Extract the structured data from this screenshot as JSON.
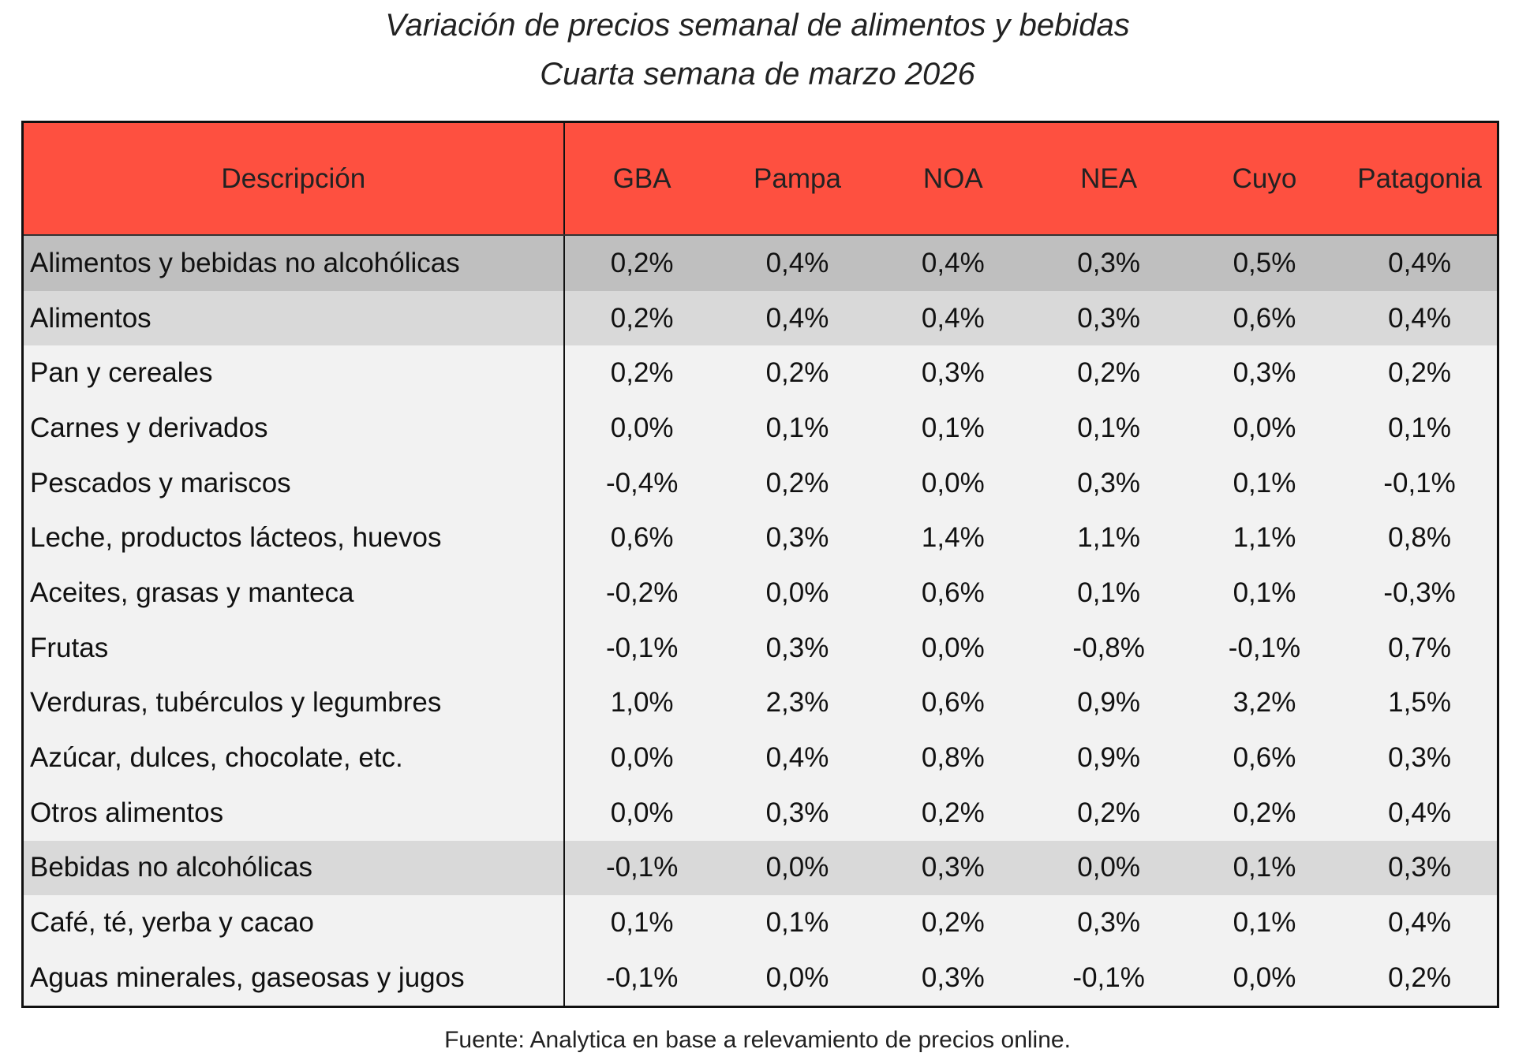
{
  "title": "Variación de precios semanal de alimentos y bebidas",
  "subtitle": "Cuarta semana de marzo 2026",
  "colors": {
    "header": "#fe5040",
    "row_total": "#bfbfbf",
    "row_group": "#d9d9d9",
    "row_item": "#f2f2f2"
  },
  "columns": [
    "Descripción",
    "GBA",
    "Pampa",
    "NOA",
    "NEA",
    "Cuyo",
    "Patagonia"
  ],
  "rows": [
    {
      "level": 0,
      "cells": [
        "Alimentos y bebidas no alcohólicas",
        "0,2%",
        "0,4%",
        "0,4%",
        "0,3%",
        "0,5%",
        "0,4%"
      ]
    },
    {
      "level": 1,
      "cells": [
        "Alimentos",
        "0,2%",
        "0,4%",
        "0,4%",
        "0,3%",
        "0,6%",
        "0,4%"
      ]
    },
    {
      "level": 2,
      "cells": [
        "Pan y cereales",
        "0,2%",
        "0,2%",
        "0,3%",
        "0,2%",
        "0,3%",
        "0,2%"
      ]
    },
    {
      "level": 2,
      "cells": [
        "Carnes y derivados",
        "0,0%",
        "0,1%",
        "0,1%",
        "0,1%",
        "0,0%",
        "0,1%"
      ]
    },
    {
      "level": 2,
      "cells": [
        "Pescados y mariscos",
        "-0,4%",
        "0,2%",
        "0,0%",
        "0,3%",
        "0,1%",
        "-0,1%"
      ]
    },
    {
      "level": 2,
      "cells": [
        "Leche, productos lácteos, huevos",
        "0,6%",
        "0,3%",
        "1,4%",
        "1,1%",
        "1,1%",
        "0,8%"
      ]
    },
    {
      "level": 2,
      "cells": [
        "Aceites, grasas y manteca",
        "-0,2%",
        "0,0%",
        "0,6%",
        "0,1%",
        "0,1%",
        "-0,3%"
      ]
    },
    {
      "level": 2,
      "cells": [
        "Frutas",
        "-0,1%",
        "0,3%",
        "0,0%",
        "-0,8%",
        "-0,1%",
        "0,7%"
      ]
    },
    {
      "level": 2,
      "cells": [
        "Verduras, tubérculos y legumbres",
        "1,0%",
        "2,3%",
        "0,6%",
        "0,9%",
        "3,2%",
        "1,5%"
      ]
    },
    {
      "level": 2,
      "cells": [
        "Azúcar, dulces, chocolate, etc.",
        "0,0%",
        "0,4%",
        "0,8%",
        "0,9%",
        "0,6%",
        "0,3%"
      ]
    },
    {
      "level": 2,
      "cells": [
        "Otros alimentos",
        "0,0%",
        "0,3%",
        "0,2%",
        "0,2%",
        "0,2%",
        "0,4%"
      ]
    },
    {
      "level": 1,
      "cells": [
        "Bebidas no alcohólicas",
        "-0,1%",
        "0,0%",
        "0,3%",
        "0,0%",
        "0,1%",
        "0,3%"
      ]
    },
    {
      "level": 2,
      "cells": [
        "Café, té, yerba y cacao",
        "0,1%",
        "0,1%",
        "0,2%",
        "0,3%",
        "0,1%",
        "0,4%"
      ]
    },
    {
      "level": 2,
      "cells": [
        "Aguas minerales, gaseosas y jugos",
        "-0,1%",
        "0,0%",
        "0,3%",
        "-0,1%",
        "0,0%",
        "0,2%"
      ]
    }
  ],
  "footer": "Fuente: Analytica en base a relevamiento de precios online."
}
